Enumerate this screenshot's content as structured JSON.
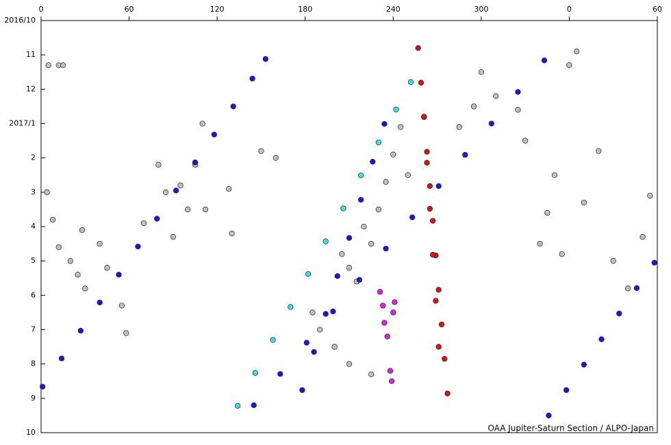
{
  "chart_data": {
    "type": "scatter",
    "footer": "OAA Jupiter-Saturn Section / ALPO-Japan",
    "xlim": [
      0,
      420
    ],
    "xticks": [
      0,
      60,
      120,
      180,
      240,
      300,
      {
        "value": 360,
        "label": "0"
      },
      {
        "value": 420,
        "label": "60"
      }
    ],
    "ylim": [
      0,
      12
    ],
    "y_reversed": true,
    "yticks": [
      {
        "value": 0,
        "label": "2016/10"
      },
      {
        "value": 1,
        "label": "11"
      },
      {
        "value": 2,
        "label": "12"
      },
      {
        "value": 3,
        "label": "2017/1"
      },
      {
        "value": 4,
        "label": "2"
      },
      {
        "value": 5,
        "label": "3"
      },
      {
        "value": 6,
        "label": "4"
      },
      {
        "value": 7,
        "label": "5"
      },
      {
        "value": 8,
        "label": "6"
      },
      {
        "value": 9,
        "label": "7"
      },
      {
        "value": 10,
        "label": "8"
      },
      {
        "value": 11,
        "label": "9"
      },
      {
        "value": 12,
        "label": "10"
      }
    ],
    "series": [
      {
        "color": "#bfbfbf",
        "x": [
          5,
          12,
          15,
          4,
          8,
          12,
          20,
          25,
          28,
          30,
          40,
          45,
          55,
          58,
          70,
          80,
          85,
          90,
          95,
          100,
          105,
          110,
          112,
          128,
          130,
          150,
          160,
          205,
          210,
          215,
          220,
          225,
          230,
          235,
          240,
          245,
          250,
          285,
          295,
          300,
          310,
          325,
          330,
          340,
          345,
          350,
          355,
          360,
          365,
          370,
          380,
          390,
          400,
          410,
          415,
          200,
          210,
          225,
          185,
          190
        ],
        "values": [
          1.3,
          1.3,
          1.3,
          5.0,
          5.8,
          6.6,
          7.0,
          7.4,
          6.1,
          7.8,
          6.5,
          7.2,
          8.3,
          9.1,
          5.9,
          4.2,
          5.0,
          6.3,
          4.8,
          5.5,
          4.2,
          3.0,
          5.5,
          4.9,
          6.2,
          3.8,
          4.0,
          6.8,
          7.2,
          7.6,
          6.0,
          6.5,
          5.5,
          4.7,
          3.9,
          3.1,
          4.5,
          3.1,
          2.5,
          1.5,
          2.2,
          2.6,
          3.5,
          6.5,
          5.6,
          4.5,
          6.8,
          1.3,
          0.9,
          5.3,
          3.8,
          7.0,
          7.8,
          6.3,
          5.1,
          9.5,
          10.0,
          10.3,
          8.5,
          9.0
        ]
      },
      {
        "color": "#1a1ad0",
        "x": [
          1,
          14,
          27,
          40,
          53,
          66,
          79,
          92,
          105,
          118,
          131,
          144,
          153
        ],
        "values": [
          10.66,
          9.84,
          9.03,
          8.21,
          7.4,
          6.58,
          5.77,
          4.95,
          4.13,
          3.32,
          2.5,
          1.69,
          1.12
        ]
      },
      {
        "color": "#1a1ad0",
        "x": [
          145,
          163,
          181,
          199,
          217,
          235,
          253,
          271,
          289,
          307,
          325,
          343
        ],
        "values": [
          11.2,
          10.29,
          9.38,
          8.47,
          7.55,
          6.64,
          5.73,
          4.82,
          3.91,
          3.0,
          2.08,
          1.16
        ]
      },
      {
        "color": "#1a1ad0",
        "x": [
          346,
          358,
          370,
          382,
          394,
          406,
          418
        ],
        "values": [
          11.5,
          10.76,
          10.02,
          9.28,
          8.53,
          7.79,
          7.05
        ]
      },
      {
        "color": "#1a1ad0",
        "x": [
          178,
          186,
          194,
          202,
          210,
          218,
          226,
          234
        ],
        "values": [
          10.76,
          9.65,
          8.54,
          7.44,
          6.33,
          5.22,
          4.11,
          3.01
        ]
      },
      {
        "color": "#40e0e0",
        "x": [
          134,
          146,
          158,
          170,
          182,
          194,
          206,
          218,
          230,
          242,
          252
        ],
        "values": [
          11.22,
          10.26,
          9.3,
          8.34,
          7.38,
          6.43,
          5.47,
          4.51,
          3.55,
          2.59,
          1.79
        ]
      },
      {
        "color": "#d01818",
        "x": [
          257,
          259,
          261,
          263,
          265,
          267,
          269,
          271,
          273,
          275,
          277,
          261,
          263,
          265,
          267,
          269,
          271
        ],
        "values": [
          0.8,
          1.81,
          2.81,
          3.82,
          4.82,
          5.83,
          6.84,
          7.84,
          8.85,
          9.85,
          10.86,
          2.8,
          4.14,
          5.48,
          6.82,
          8.16,
          9.5
        ]
      },
      {
        "color": "#e020e0",
        "x": [
          231,
          233,
          234,
          236,
          238,
          239,
          240,
          241
        ],
        "values": [
          7.9,
          8.3,
          8.8,
          9.2,
          10.2,
          10.5,
          8.5,
          8.2
        ]
      }
    ]
  }
}
